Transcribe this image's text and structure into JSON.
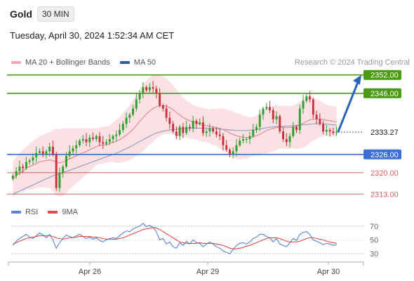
{
  "header": {
    "instrument": "Gold",
    "timeframe": "30 MIN",
    "datetime": "Tuesday, April 30, 2024 1:52:34 AM CET"
  },
  "legend": {
    "ma20_bb": "MA 20 + Bollinger Bands",
    "ma50": "MA 50",
    "credit": "Research © 2024 Trading Central",
    "rsi": "RSI",
    "ma9": "9MA"
  },
  "colors": {
    "resistance": "#4a9a12",
    "support": "#e06060",
    "pivot": "#3a6fd8",
    "current": "#333333",
    "bull": "#2f9e2f",
    "bear": "#c8323a",
    "bollinger": "#f7c8cc",
    "ma20": "#e88a92",
    "ma50": "#8fa3c8",
    "rsi": "#5b82d6",
    "rsi_ma": "#e24a4a",
    "arrow": "#2a64b8"
  },
  "chart_data": [
    {
      "type": "candlestick",
      "ylim": [
        2311,
        2354
      ],
      "x_ticks": [
        "Apr 26",
        "Apr 29",
        "Apr 30"
      ],
      "levels": [
        {
          "value": 2352.0,
          "label": "2352.00",
          "kind": "resistance"
        },
        {
          "value": 2346.0,
          "label": "2346.00",
          "kind": "resistance"
        },
        {
          "value": 2333.27,
          "label": "2333.27",
          "kind": "current"
        },
        {
          "value": 2326.0,
          "label": "2326.00",
          "kind": "pivot"
        },
        {
          "value": 2320.0,
          "label": "2320.00",
          "kind": "support"
        },
        {
          "value": 2313.0,
          "label": "2313.00",
          "kind": "support"
        }
      ],
      "candles_close": [
        2319.0,
        2320.5,
        2322.0,
        2321.5,
        2323.5,
        2324.0,
        2325.0,
        2326.5,
        2327.0,
        2326.0,
        2327.0,
        2328.5,
        2326.0,
        2315.0,
        2320.0,
        2322.0,
        2325.5,
        2327.0,
        2328.0,
        2329.0,
        2330.5,
        2331.0,
        2330.0,
        2331.5,
        2331.0,
        2332.0,
        2330.0,
        2329.5,
        2330.0,
        2331.0,
        2332.0,
        2332.5,
        2334.0,
        2336.0,
        2338.0,
        2339.0,
        2341.0,
        2344.0,
        2346.0,
        2348.0,
        2347.0,
        2348.0,
        2347.5,
        2346.0,
        2342.0,
        2341.0,
        2338.0,
        2336.0,
        2333.5,
        2332.0,
        2335.0,
        2333.0,
        2335.0,
        2334.5,
        2337.0,
        2336.0,
        2336.5,
        2333.0,
        2333.5,
        2334.5,
        2333.5,
        2332.5,
        2332.0,
        2329.0,
        2327.5,
        2326.0,
        2327.0,
        2329.0,
        2330.5,
        2331.0,
        2331.0,
        2332.0,
        2334.0,
        2335.0,
        2339.0,
        2341.0,
        2341.5,
        2340.5,
        2337.5,
        2338.5,
        2333.5,
        2331.0,
        2330.0,
        2332.0,
        2335.0,
        2334.0,
        2341.0,
        2343.5,
        2345.0,
        2344.0,
        2339.0,
        2337.5,
        2336.0,
        2333.5,
        2334.0,
        2333.5,
        2333.0,
        2333.27
      ],
      "ma20_close": [
        2318.0,
        2319.0,
        2320.0,
        2320.5,
        2321.5,
        2322.0,
        2322.5,
        2323.0,
        2323.5,
        2323.8,
        2324.0,
        2324.2,
        2324.0,
        2323.5,
        2323.2,
        2323.5,
        2324.0,
        2324.5,
        2325.0,
        2325.5,
        2326.0,
        2326.5,
        2327.0,
        2327.5,
        2328.0,
        2328.5,
        2329.0,
        2329.0,
        2329.2,
        2329.5,
        2330.0,
        2330.3,
        2330.8,
        2331.5,
        2332.3,
        2333.2,
        2334.2,
        2335.5,
        2336.8,
        2338.0,
        2339.2,
        2340.2,
        2341.0,
        2341.6,
        2341.9,
        2342.0,
        2341.8,
        2341.3,
        2340.6,
        2339.7,
        2338.9,
        2338.1,
        2337.5,
        2337.0,
        2336.6,
        2336.3,
        2336.0,
        2335.7,
        2335.4,
        2335.2,
        2335.0,
        2334.8,
        2334.5,
        2334.1,
        2333.6,
        2333.0,
        2332.5,
        2332.1,
        2331.8,
        2331.6,
        2331.5,
        2331.6,
        2331.8,
        2332.1,
        2332.6,
        2333.2,
        2333.8,
        2334.2,
        2334.5,
        2334.8,
        2334.9,
        2334.9,
        2334.8,
        2334.8,
        2335.0,
        2335.2,
        2335.6,
        2336.2,
        2336.8,
        2337.3,
        2337.5,
        2337.6,
        2337.6,
        2337.4,
        2337.2,
        2337.0,
        2336.8,
        2336.6
      ],
      "ma50_close": [
        2313.0,
        2313.5,
        2314.0,
        2314.5,
        2315.0,
        2315.5,
        2316.0,
        2316.5,
        2317.0,
        2317.5,
        2318.0,
        2318.5,
        2319.0,
        2319.3,
        2319.6,
        2320.0,
        2320.4,
        2320.8,
        2321.2,
        2321.6,
        2322.0,
        2322.4,
        2322.8,
        2323.2,
        2323.6,
        2324.0,
        2324.4,
        2324.8,
        2325.2,
        2325.6,
        2326.0,
        2326.4,
        2326.9,
        2327.4,
        2327.9,
        2328.4,
        2329.0,
        2329.6,
        2330.2,
        2330.8,
        2331.4,
        2332.0,
        2332.5,
        2333.0,
        2333.3,
        2333.6,
        2333.8,
        2334.0,
        2334.1,
        2334.2,
        2334.3,
        2334.4,
        2334.5,
        2334.6,
        2334.6,
        2334.6,
        2334.6,
        2334.6,
        2334.6,
        2334.5,
        2334.5,
        2334.4,
        2334.3,
        2334.2,
        2334.1,
        2334.0,
        2333.9,
        2333.8,
        2333.8,
        2333.8,
        2333.8,
        2333.9,
        2334.0,
        2334.1,
        2334.3,
        2334.5,
        2334.7,
        2334.9,
        2335.0,
        2335.1,
        2335.2,
        2335.2,
        2335.3,
        2335.3,
        2335.4,
        2335.5,
        2335.6,
        2335.7,
        2335.8,
        2335.9,
        2336.0,
        2336.0,
        2336.0,
        2336.0,
        2335.9,
        2335.8,
        2335.7,
        2335.6
      ],
      "bb_width": [
        6,
        6,
        6.5,
        7,
        7,
        7.5,
        8,
        8,
        8.5,
        8.5,
        9,
        9,
        10,
        11,
        11,
        11,
        10.5,
        10,
        9.5,
        9,
        8.5,
        8,
        7.5,
        7,
        6.5,
        6,
        6,
        6,
        6,
        6,
        6.5,
        7,
        7.5,
        8,
        8.5,
        9,
        9.5,
        10,
        10.5,
        11,
        11,
        11,
        11,
        10.5,
        10,
        9.5,
        9,
        8.5,
        8,
        7.5,
        7,
        6.5,
        6,
        6,
        5.5,
        5.5,
        5.5,
        5.5,
        5.5,
        5.5,
        6,
        6,
        6.5,
        7,
        7,
        7.5,
        7.5,
        7.5,
        7.5,
        7,
        7,
        6.5,
        6.5,
        6.5,
        7,
        7,
        7.5,
        7.5,
        7.5,
        7.5,
        7,
        7,
        7,
        7,
        7,
        7.5,
        7.5,
        8,
        8,
        7.5,
        7,
        6.5,
        6,
        5.5,
        5,
        5,
        5,
        5
      ],
      "projection_target": 2352.0
    },
    {
      "type": "line",
      "ylim": [
        24,
        80
      ],
      "yticks": [
        70,
        50,
        30
      ],
      "series": [
        {
          "name": "RSI",
          "values": [
            42,
            48,
            52,
            55,
            58,
            54,
            52,
            56,
            60,
            57,
            53,
            58,
            50,
            38,
            46,
            52,
            57,
            55,
            53,
            56,
            58,
            55,
            52,
            54,
            51,
            53,
            49,
            47,
            50,
            52,
            53,
            52,
            56,
            60,
            63,
            62,
            66,
            68,
            70,
            74,
            69,
            71,
            68,
            62,
            50,
            52,
            44,
            47,
            40,
            38,
            46,
            42,
            48,
            44,
            50,
            46,
            45,
            40,
            44,
            47,
            44,
            40,
            38,
            34,
            32,
            30,
            36,
            42,
            45,
            46,
            44,
            47,
            52,
            54,
            58,
            58,
            55,
            53,
            47,
            52,
            44,
            42,
            40,
            46,
            52,
            49,
            58,
            61,
            62,
            58,
            50,
            48,
            46,
            43,
            45,
            44,
            42,
            43
          ]
        },
        {
          "name": "9MA",
          "values": [
            44,
            46,
            48,
            50,
            52,
            53,
            54,
            55,
            56,
            56,
            56,
            56,
            55,
            53,
            52,
            51,
            52,
            53,
            53,
            54,
            55,
            55,
            55,
            55,
            54,
            54,
            53,
            52,
            51,
            51,
            51,
            51,
            52,
            53,
            55,
            57,
            59,
            61,
            63,
            65,
            66,
            67,
            68,
            67,
            65,
            62,
            59,
            56,
            53,
            50,
            47,
            46,
            45,
            45,
            45,
            45,
            46,
            45,
            45,
            45,
            45,
            44,
            43,
            42,
            40,
            38,
            37,
            37,
            38,
            39,
            41,
            42,
            44,
            46,
            48,
            50,
            52,
            53,
            53,
            53,
            52,
            50,
            48,
            47,
            47,
            47,
            48,
            50,
            52,
            53,
            53,
            52,
            51,
            50,
            48,
            47,
            46,
            45
          ]
        }
      ]
    }
  ]
}
